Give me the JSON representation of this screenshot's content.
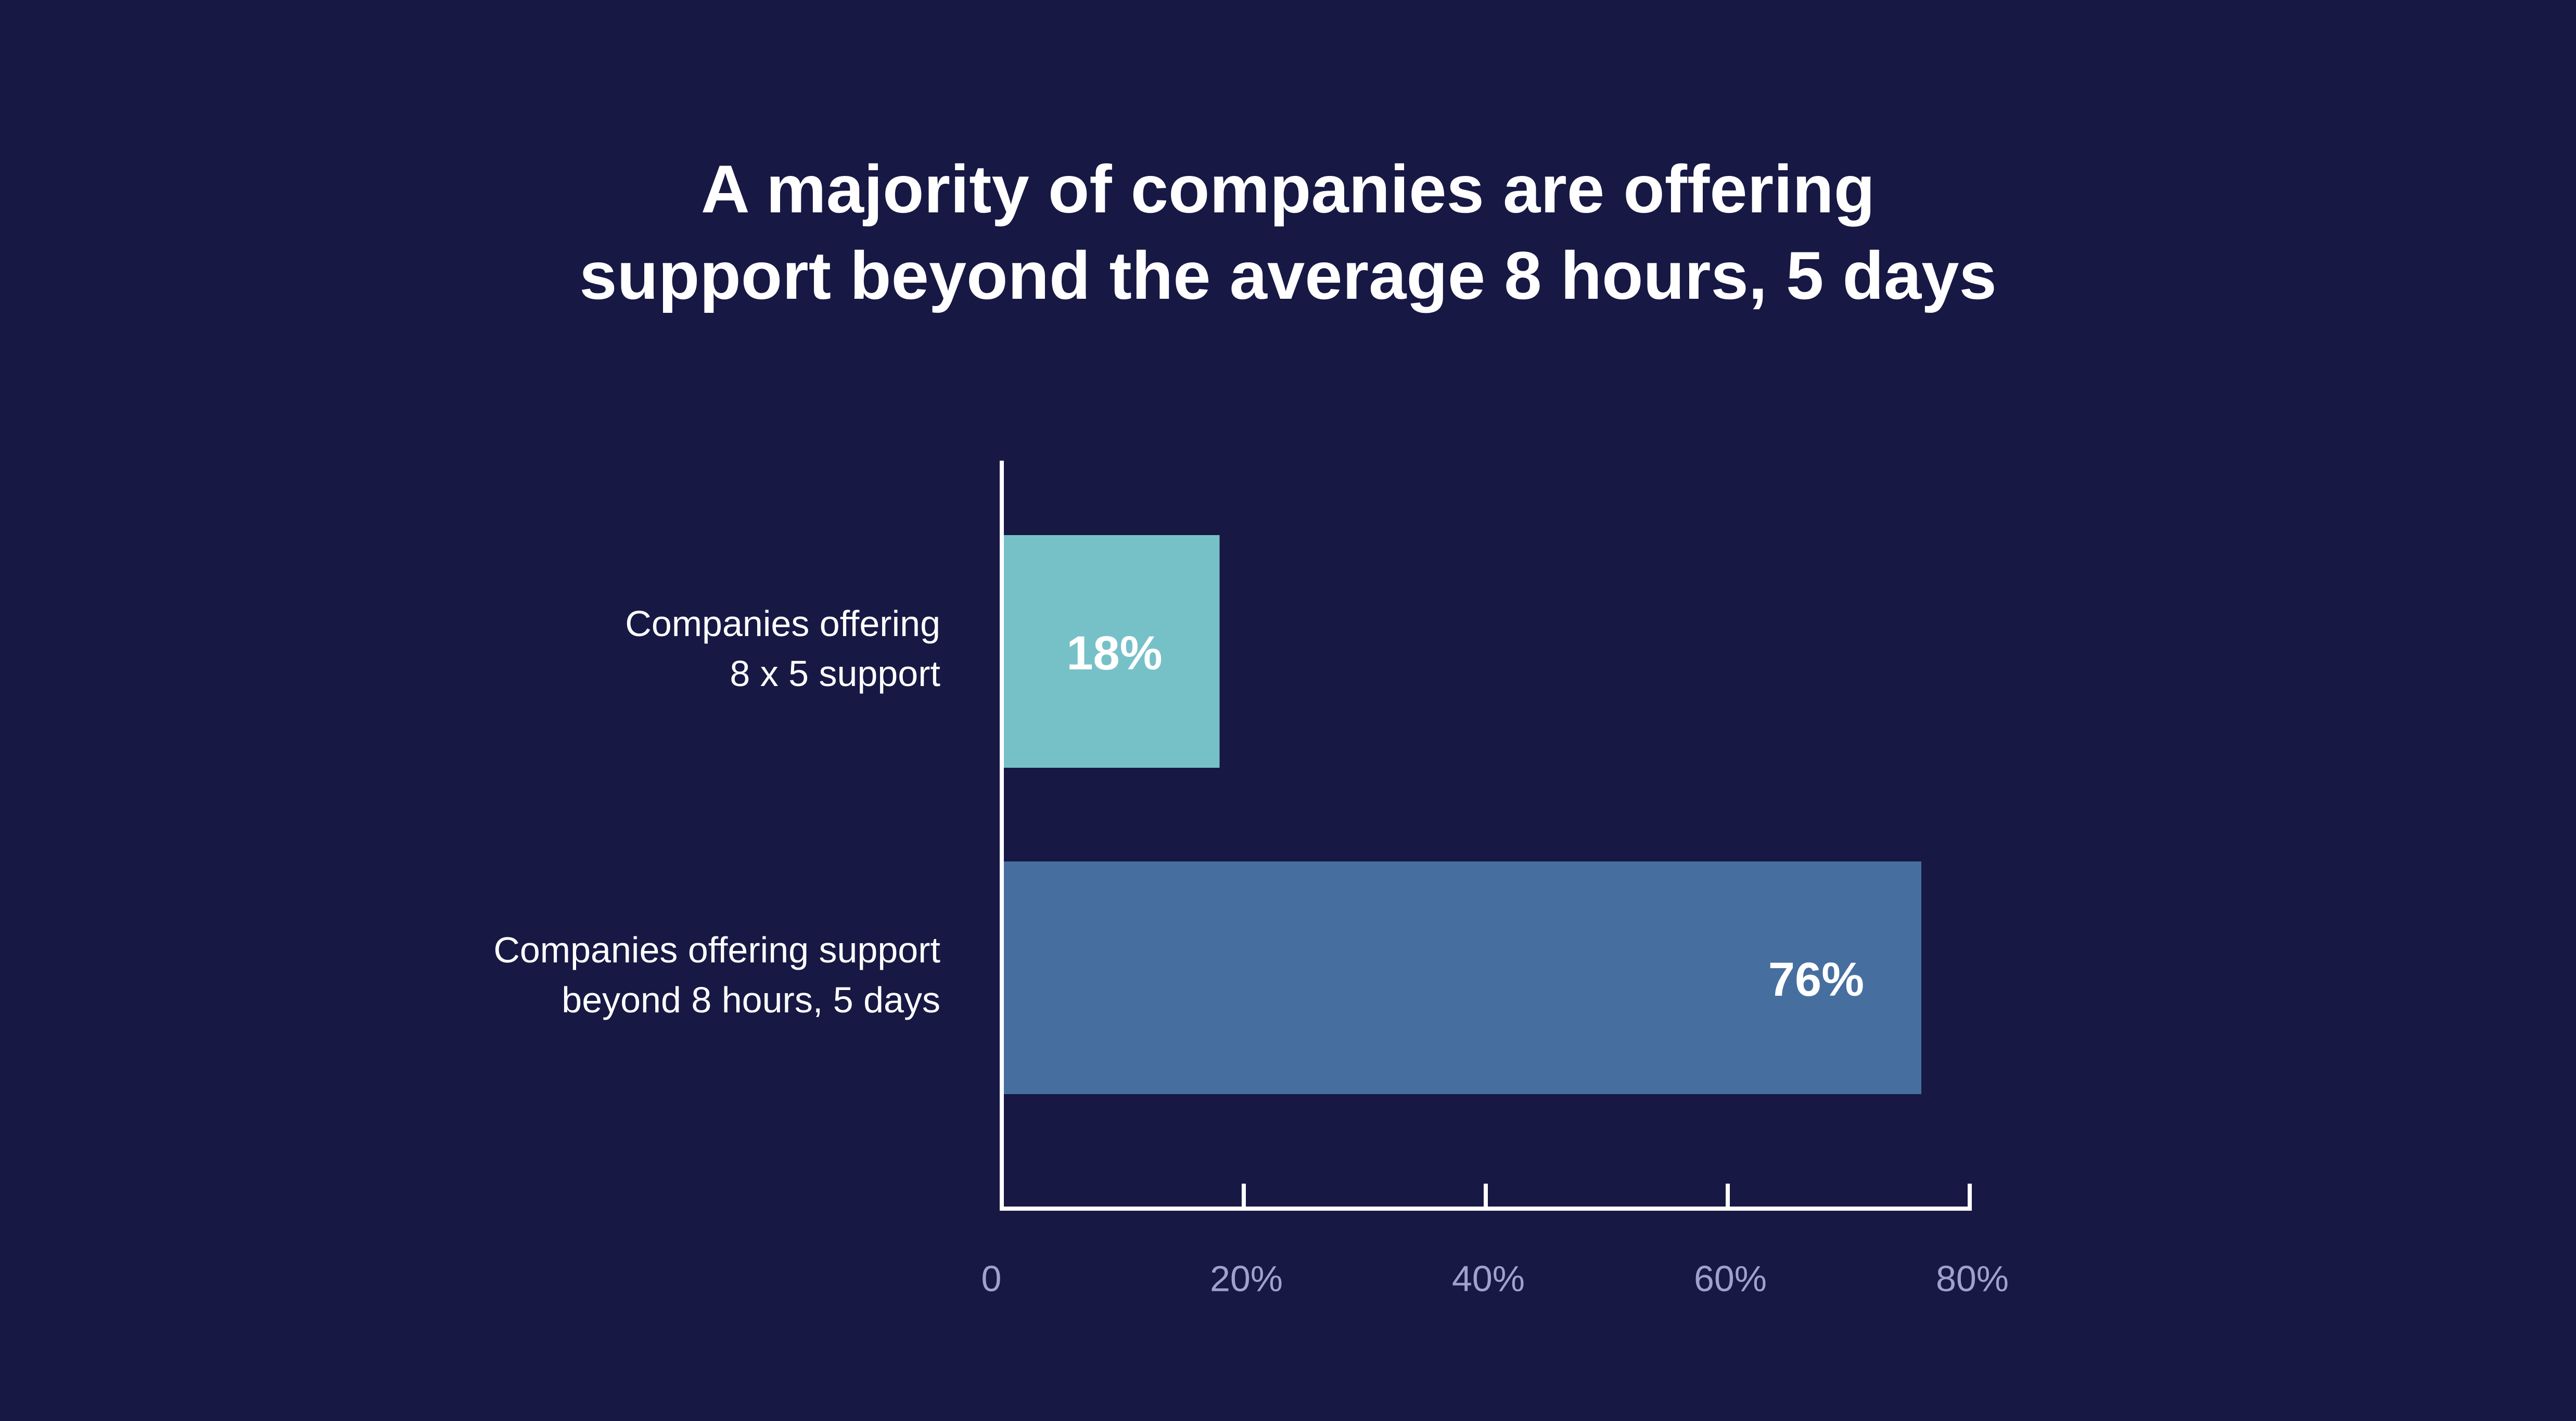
{
  "chart_data": {
    "type": "bar",
    "orientation": "horizontal",
    "title": [
      "A majority of companies are offering",
      "support beyond the average 8 hours, 5 days"
    ],
    "categories": [
      [
        "Companies offering",
        "8 x 5 support"
      ],
      [
        "Companies offering support",
        "beyond  8 hours, 5 days"
      ]
    ],
    "values": [
      18,
      76
    ],
    "data_labels": [
      "18%",
      "76%"
    ],
    "xlim": [
      0,
      80
    ],
    "x_ticks": [
      0,
      20,
      40,
      60,
      80
    ],
    "x_tick_labels": [
      "0",
      "20%",
      "40%",
      "60%",
      "80%"
    ],
    "grid": false,
    "legend": "none",
    "colors": {
      "background": "#171844",
      "bars": [
        "#76c1c8",
        "#466fa0"
      ],
      "axis": "#ffffff",
      "tick_label": "#9ea3cc",
      "text": "#ffffff"
    }
  }
}
